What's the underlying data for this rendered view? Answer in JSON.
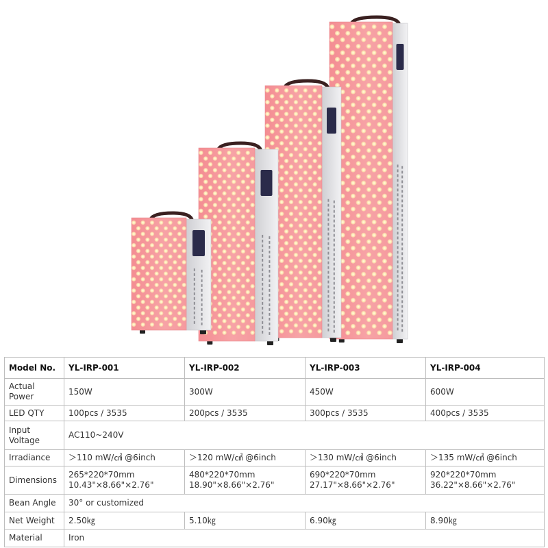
{
  "product_image": {
    "description_icon": "red-light-therapy-panels-photo",
    "colors": {
      "panel_face": "#f39a9c",
      "led": "#fff3c4",
      "body": "#e8e8ea",
      "handle": "#3a2020"
    }
  },
  "table": {
    "header": {
      "label": "Model No.",
      "models": [
        "YL-IRP-001",
        "YL-IRP-002",
        "YL-IRP-003",
        "YL-IRP-004"
      ]
    },
    "rows": {
      "power": {
        "label_1": "Actual",
        "label_2": "Power",
        "values": [
          "150W",
          "300W",
          "450W",
          "600W"
        ]
      },
      "led_qty": {
        "label": "LED QTY",
        "values": [
          "100pcs / 3535",
          "200pcs / 3535",
          "300pcs / 3535",
          "400pcs / 3535"
        ]
      },
      "input_voltage": {
        "label_1": "Input",
        "label_2": "Voltage",
        "value": "AC110~240V"
      },
      "irradiance": {
        "label": "Irradiance",
        "values": [
          "＞110 mW/㎠ @6inch",
          "＞120 mW/㎠ @6inch",
          "＞130 mW/㎠ @6inch",
          "＞135 mW/㎠ @6inch"
        ]
      },
      "dimensions": {
        "label": "Dimensions",
        "mm": [
          "265*220*70mm",
          "480*220*70mm",
          "690*220*70mm",
          "920*220*70mm"
        ],
        "inch": [
          "10.43\"×8.66\"×2.76\"",
          "18.90\"×8.66\"×2.76\"",
          "27.17\"×8.66\"×2.76\"",
          "36.22\"×8.66\"×2.76\""
        ]
      },
      "beam_angle": {
        "label": "Bean Angle",
        "value": "30° or customized"
      },
      "net_weight": {
        "label": "Net Weight",
        "values": [
          "2.50㎏",
          "5.10㎏",
          "6.90㎏",
          "8.90㎏"
        ]
      },
      "material": {
        "label": "Material",
        "value": "Iron"
      }
    }
  }
}
